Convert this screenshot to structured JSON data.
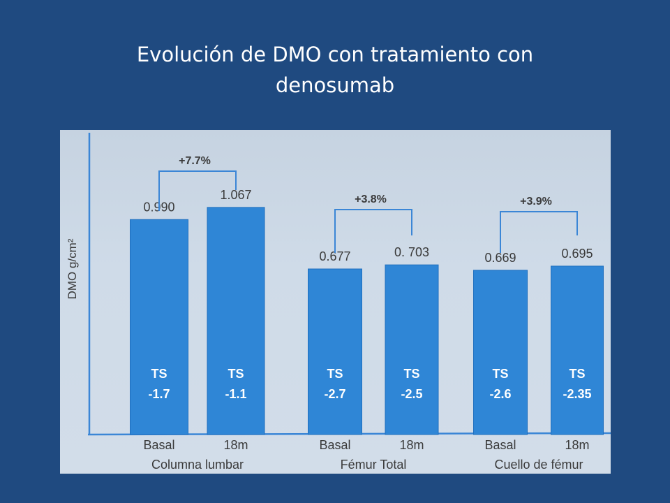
{
  "slide": {
    "title_line1": "Evolución  de DMO con tratamiento con",
    "title_line2": "denosumab"
  },
  "colors": {
    "background": "#1f4a80",
    "bar": "#2f86d6",
    "bar_edge": "#1f6fbf",
    "axis": "#3b86d6",
    "text": "#3a3a3a"
  },
  "chart_data": {
    "type": "bar",
    "ylabel": "DMO    g/cm²",
    "groups": [
      {
        "name": "Columna lumbar",
        "change": "+7.7%",
        "bars": [
          {
            "category": "Basal",
            "value": 0.99,
            "label": "0.990",
            "ts_title": "TS",
            "ts_value": "-1.7"
          },
          {
            "category": "18m",
            "value": 1.067,
            "label": "1.067",
            "ts_title": "TS",
            "ts_value": "-1.1"
          }
        ]
      },
      {
        "name": "Fémur Total",
        "change": "+3.8%",
        "bars": [
          {
            "category": "Basal",
            "value": 0.677,
            "label": "0.677",
            "ts_title": "TS",
            "ts_value": "-2.7"
          },
          {
            "category": "18m",
            "value": 0.703,
            "label": "0. 703",
            "ts_title": "TS",
            "ts_value": "-2.5"
          }
        ]
      },
      {
        "name": "Cuello de fémur",
        "change": "+3.9%",
        "bars": [
          {
            "category": "Basal",
            "value": 0.669,
            "label": "0.669",
            "ts_title": "TS",
            "ts_value": "-2.6"
          },
          {
            "category": "18m",
            "value": 0.695,
            "label": "0.695",
            "ts_title": "TS",
            "ts_value": "-2.35"
          }
        ]
      }
    ],
    "grid": false,
    "legend": "none"
  }
}
